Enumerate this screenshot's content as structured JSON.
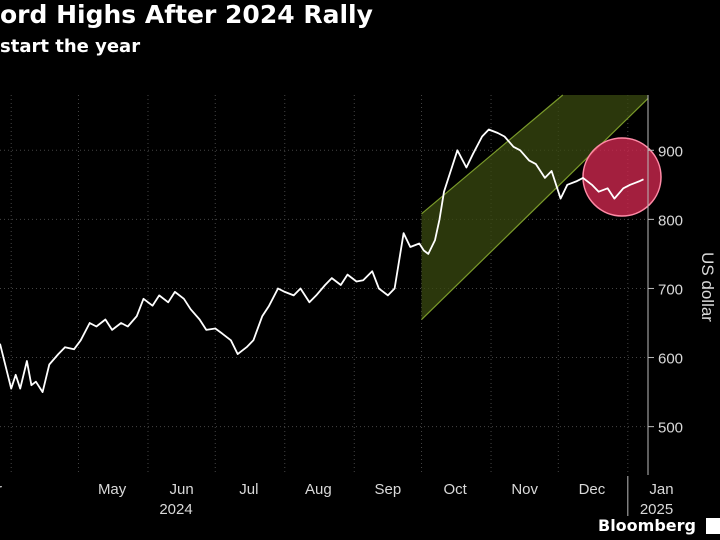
{
  "header": {
    "title": "ord Highs After 2024 Rally",
    "subtitle": "start the year"
  },
  "brand": {
    "name": "Bloomberg"
  },
  "colors": {
    "background": "#000000",
    "line": "#ffffff",
    "channel_fill": "#3a4a10",
    "channel_edge": "#7a9a2a",
    "highlight": "#d1284f",
    "grid": "#444444"
  },
  "chart_data": {
    "type": "line",
    "ylabel": "US dollar",
    "ylim": [
      430,
      980
    ],
    "yticks": [
      500,
      600,
      700,
      800,
      900
    ],
    "y_axis_side": "right",
    "grid": "dotted vertical and horizontal",
    "month_labels": [
      "Apr",
      "May",
      "Jun",
      "Jul",
      "Aug",
      "Sep",
      "Oct",
      "Nov",
      "Dec",
      "Jan"
    ],
    "year_labels": [
      "2024",
      "2025"
    ],
    "xlim": [
      "2024-03-27",
      "2025-01-10"
    ],
    "series": [
      {
        "x": [
          "2024-03-27",
          "2024-04-01",
          "2024-04-03",
          "2024-04-05",
          "2024-04-08",
          "2024-04-10",
          "2024-04-12",
          "2024-04-15",
          "2024-04-18",
          "2024-04-22",
          "2024-04-25",
          "2024-04-29",
          "2024-05-02",
          "2024-05-06",
          "2024-05-09",
          "2024-05-13",
          "2024-05-16",
          "2024-05-20",
          "2024-05-23",
          "2024-05-27",
          "2024-05-30",
          "2024-06-03",
          "2024-06-06",
          "2024-06-10",
          "2024-06-13",
          "2024-06-17",
          "2024-06-20",
          "2024-06-24",
          "2024-06-27",
          "2024-07-01",
          "2024-07-04",
          "2024-07-08",
          "2024-07-11",
          "2024-07-15",
          "2024-07-18",
          "2024-07-22",
          "2024-07-25",
          "2024-07-29",
          "2024-08-01",
          "2024-08-05",
          "2024-08-08",
          "2024-08-12",
          "2024-08-15",
          "2024-08-19",
          "2024-08-22",
          "2024-08-26",
          "2024-08-29",
          "2024-09-02",
          "2024-09-05",
          "2024-09-09",
          "2024-09-12",
          "2024-09-16",
          "2024-09-19",
          "2024-09-23",
          "2024-09-26",
          "2024-09-30",
          "2024-10-02",
          "2024-10-04",
          "2024-10-07",
          "2024-10-09",
          "2024-10-11",
          "2024-10-14",
          "2024-10-17",
          "2024-10-21",
          "2024-10-24",
          "2024-10-28",
          "2024-10-31",
          "2024-11-04",
          "2024-11-07",
          "2024-11-11",
          "2024-11-14",
          "2024-11-18",
          "2024-11-21",
          "2024-11-25",
          "2024-11-28",
          "2024-12-02",
          "2024-12-05",
          "2024-12-09",
          "2024-12-12",
          "2024-12-16",
          "2024-12-19",
          "2024-12-23",
          "2024-12-26",
          "2024-12-30",
          "2025-01-02",
          "2025-01-06",
          "2025-01-08"
        ],
        "values": [
          620,
          555,
          575,
          555,
          595,
          560,
          565,
          550,
          590,
          605,
          615,
          612,
          625,
          650,
          645,
          655,
          640,
          650,
          645,
          660,
          685,
          675,
          690,
          680,
          695,
          685,
          670,
          655,
          640,
          642,
          635,
          625,
          605,
          615,
          625,
          660,
          675,
          700,
          695,
          690,
          700,
          680,
          690,
          705,
          715,
          705,
          720,
          710,
          712,
          725,
          700,
          690,
          700,
          780,
          760,
          765,
          755,
          750,
          770,
          800,
          840,
          870,
          900,
          875,
          895,
          920,
          930,
          925,
          920,
          905,
          900,
          885,
          880,
          860,
          870,
          830,
          850,
          855,
          860,
          850,
          840,
          845,
          830,
          845,
          850,
          855,
          858
        ],
        "extra_ignored": []
      }
    ]
  }
}
